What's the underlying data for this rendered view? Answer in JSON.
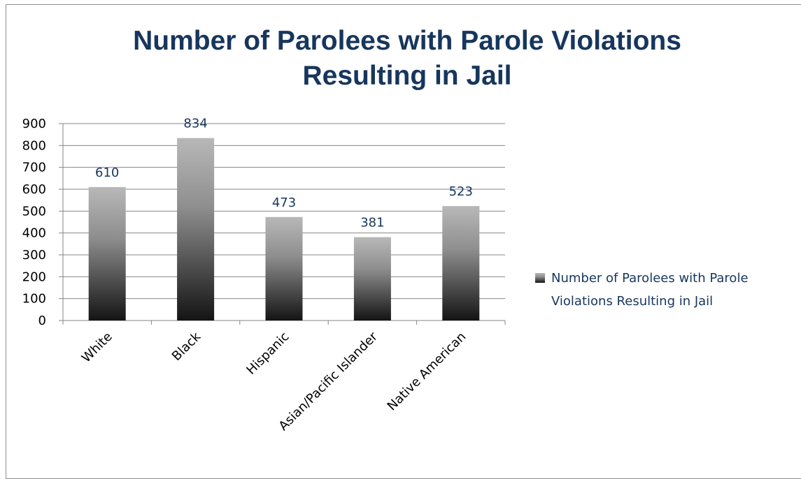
{
  "chart_data": {
    "type": "bar",
    "title": "Number of Parolees with Parole Violations Resulting in Jail",
    "categories": [
      "White",
      "Black",
      "Hispanic",
      "Asian/Pacific Islander",
      "Native American"
    ],
    "series": [
      {
        "name": "Number of Parolees with Parole Violations Resulting in Jail",
        "values": [
          610,
          834,
          473,
          381,
          523
        ]
      }
    ],
    "ylim": [
      0,
      900
    ],
    "yticks": [
      0,
      100,
      200,
      300,
      400,
      500,
      600,
      700,
      800,
      900
    ],
    "grid": true,
    "data_labels": true,
    "legend_position": "right",
    "colors": {
      "title": "#17365d",
      "data_label": "#17365d",
      "bar_top": "#b8b8b8",
      "bar_bottom": "#141414",
      "grid": "#868686"
    }
  }
}
